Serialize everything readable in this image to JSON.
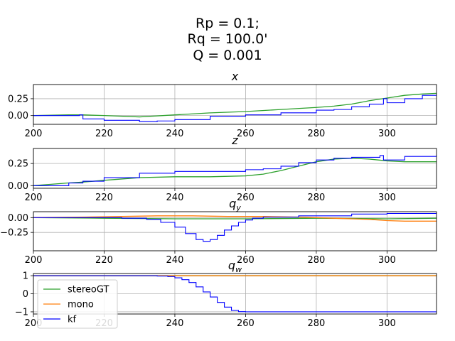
{
  "figure": {
    "title_lines": [
      "Rp = 0.1;",
      "Rq = 100.0'",
      "Q = 0.001"
    ]
  },
  "chart_data": [
    {
      "type": "line",
      "title": "x",
      "xlim": [
        200,
        314
      ],
      "ylim": [
        -0.13,
        0.46
      ],
      "x_ticks": [
        200,
        220,
        240,
        260,
        280,
        300
      ],
      "y_ticks": [
        0.0,
        0.25
      ],
      "y_tick_labels": [
        "0.00",
        "0.25"
      ],
      "grid": true,
      "series": [
        {
          "name": "stereoGT",
          "color": "#2ca02c",
          "step": false,
          "points": [
            [
              200,
              0.0
            ],
            [
              210,
              0.01
            ],
            [
              214,
              0.01
            ],
            [
              220,
              0.0
            ],
            [
              230,
              -0.02
            ],
            [
              240,
              0.01
            ],
            [
              250,
              0.04
            ],
            [
              260,
              0.06
            ],
            [
              270,
              0.09
            ],
            [
              280,
              0.12
            ],
            [
              285,
              0.14
            ],
            [
              290,
              0.17
            ],
            [
              295,
              0.22
            ],
            [
              300,
              0.26
            ],
            [
              305,
              0.3
            ],
            [
              310,
              0.32
            ],
            [
              314,
              0.33
            ]
          ]
        },
        {
          "name": "kf",
          "color": "#0000ff",
          "step": true,
          "points": [
            [
              200,
              0.0
            ],
            [
              213,
              0.01
            ],
            [
              214,
              -0.05
            ],
            [
              220,
              -0.07
            ],
            [
              230,
              -0.09
            ],
            [
              235,
              -0.08
            ],
            [
              240,
              -0.06
            ],
            [
              250,
              -0.01
            ],
            [
              260,
              0.01
            ],
            [
              270,
              0.04
            ],
            [
              280,
              0.08
            ],
            [
              285,
              0.09
            ],
            [
              290,
              0.13
            ],
            [
              295,
              0.17
            ],
            [
              299,
              0.25
            ],
            [
              300,
              0.19
            ],
            [
              305,
              0.25
            ],
            [
              310,
              0.3
            ],
            [
              314,
              0.32
            ]
          ]
        }
      ]
    },
    {
      "type": "line",
      "title": "z",
      "xlim": [
        200,
        314
      ],
      "ylim": [
        -0.03,
        0.42
      ],
      "x_ticks": [
        200,
        220,
        240,
        260,
        280,
        300
      ],
      "y_ticks": [
        0.0,
        0.25
      ],
      "y_tick_labels": [
        "0.00",
        "0.25"
      ],
      "grid": true,
      "series": [
        {
          "name": "stereoGT",
          "color": "#2ca02c",
          "step": false,
          "points": [
            [
              200,
              0.0
            ],
            [
              210,
              0.03
            ],
            [
              214,
              0.04
            ],
            [
              220,
              0.06
            ],
            [
              230,
              0.09
            ],
            [
              240,
              0.1
            ],
            [
              250,
              0.1
            ],
            [
              260,
              0.11
            ],
            [
              265,
              0.13
            ],
            [
              270,
              0.17
            ],
            [
              275,
              0.22
            ],
            [
              280,
              0.27
            ],
            [
              285,
              0.3
            ],
            [
              290,
              0.31
            ],
            [
              295,
              0.3
            ],
            [
              300,
              0.28
            ],
            [
              305,
              0.27
            ],
            [
              314,
              0.27
            ]
          ]
        },
        {
          "name": "kf",
          "color": "#0000ff",
          "step": true,
          "points": [
            [
              200,
              0.0
            ],
            [
              210,
              0.03
            ],
            [
              214,
              0.05
            ],
            [
              220,
              0.09
            ],
            [
              230,
              0.14
            ],
            [
              240,
              0.16
            ],
            [
              250,
              0.16
            ],
            [
              260,
              0.18
            ],
            [
              265,
              0.19
            ],
            [
              270,
              0.22
            ],
            [
              275,
              0.26
            ],
            [
              280,
              0.29
            ],
            [
              285,
              0.31
            ],
            [
              290,
              0.32
            ],
            [
              298,
              0.34
            ],
            [
              299,
              0.29
            ],
            [
              305,
              0.33
            ],
            [
              314,
              0.35
            ]
          ]
        }
      ]
    },
    {
      "type": "line",
      "title": "q_y",
      "xlim": [
        200,
        314
      ],
      "ylim": [
        -0.56,
        0.1
      ],
      "x_ticks": [
        200,
        220,
        240,
        260,
        280,
        300
      ],
      "y_ticks": [
        0.0,
        -0.25
      ],
      "y_tick_labels": [
        "0.00",
        "−0.25"
      ],
      "grid": true,
      "series": [
        {
          "name": "stereoGT",
          "color": "#2ca02c",
          "step": false,
          "points": [
            [
              200,
              0.0
            ],
            [
              220,
              -0.01
            ],
            [
              240,
              -0.02
            ],
            [
              260,
              -0.02
            ],
            [
              280,
              -0.01
            ],
            [
              300,
              -0.02
            ],
            [
              314,
              -0.01
            ]
          ]
        },
        {
          "name": "mono",
          "color": "#ff7f0e",
          "step": false,
          "points": [
            [
              200,
              0.0
            ],
            [
              215,
              0.01
            ],
            [
              225,
              0.02
            ],
            [
              235,
              0.03
            ],
            [
              245,
              0.03
            ],
            [
              255,
              0.02
            ],
            [
              265,
              0.02
            ],
            [
              275,
              0.01
            ],
            [
              285,
              -0.01
            ],
            [
              295,
              -0.03
            ],
            [
              300,
              -0.05
            ],
            [
              305,
              -0.06
            ],
            [
              314,
              -0.06
            ]
          ]
        },
        {
          "name": "kf",
          "color": "#0000ff",
          "step": true,
          "points": [
            [
              200,
              0.0
            ],
            [
              225,
              -0.01
            ],
            [
              232,
              -0.03
            ],
            [
              236,
              -0.08
            ],
            [
              240,
              -0.16
            ],
            [
              243,
              -0.27
            ],
            [
              246,
              -0.37
            ],
            [
              248,
              -0.4
            ],
            [
              250,
              -0.37
            ],
            [
              252,
              -0.3
            ],
            [
              254,
              -0.21
            ],
            [
              256,
              -0.14
            ],
            [
              258,
              -0.08
            ],
            [
              260,
              -0.04
            ],
            [
              262,
              -0.01
            ],
            [
              265,
              0.01
            ],
            [
              275,
              0.03
            ],
            [
              290,
              0.06
            ],
            [
              300,
              0.07
            ],
            [
              314,
              0.08
            ]
          ]
        }
      ]
    },
    {
      "type": "line",
      "title": "q_w",
      "xlim": [
        200,
        314
      ],
      "ylim": [
        -1.12,
        1.12
      ],
      "x_ticks": [
        200,
        220,
        240,
        260,
        280,
        300
      ],
      "y_ticks": [
        1,
        0,
        -1
      ],
      "y_tick_labels": [
        "1",
        "0",
        "−1"
      ],
      "grid": true,
      "series": [
        {
          "name": "stereoGT",
          "color": "#2ca02c",
          "step": false,
          "points": [
            [
              200,
              1.0
            ],
            [
              314,
              1.0
            ]
          ]
        },
        {
          "name": "mono",
          "color": "#ff7f0e",
          "step": false,
          "points": [
            [
              200,
              1.0
            ],
            [
              314,
              1.0
            ]
          ]
        },
        {
          "name": "kf",
          "color": "#0000ff",
          "step": true,
          "points": [
            [
              200,
              1.0
            ],
            [
              235,
              0.98
            ],
            [
              238,
              0.95
            ],
            [
              240,
              0.88
            ],
            [
              242,
              0.78
            ],
            [
              244,
              0.62
            ],
            [
              246,
              0.38
            ],
            [
              248,
              0.1
            ],
            [
              250,
              -0.18
            ],
            [
              252,
              -0.48
            ],
            [
              254,
              -0.74
            ],
            [
              256,
              -0.92
            ],
            [
              258,
              -0.99
            ],
            [
              260,
              -1.0
            ],
            [
              314,
              -1.0
            ]
          ]
        }
      ]
    }
  ],
  "legend": {
    "placement": "lower-left",
    "entries": [
      {
        "label": "stereoGT",
        "color": "#2ca02c"
      },
      {
        "label": "mono",
        "color": "#ff7f0e"
      },
      {
        "label": "kf",
        "color": "#0000ff"
      }
    ]
  }
}
